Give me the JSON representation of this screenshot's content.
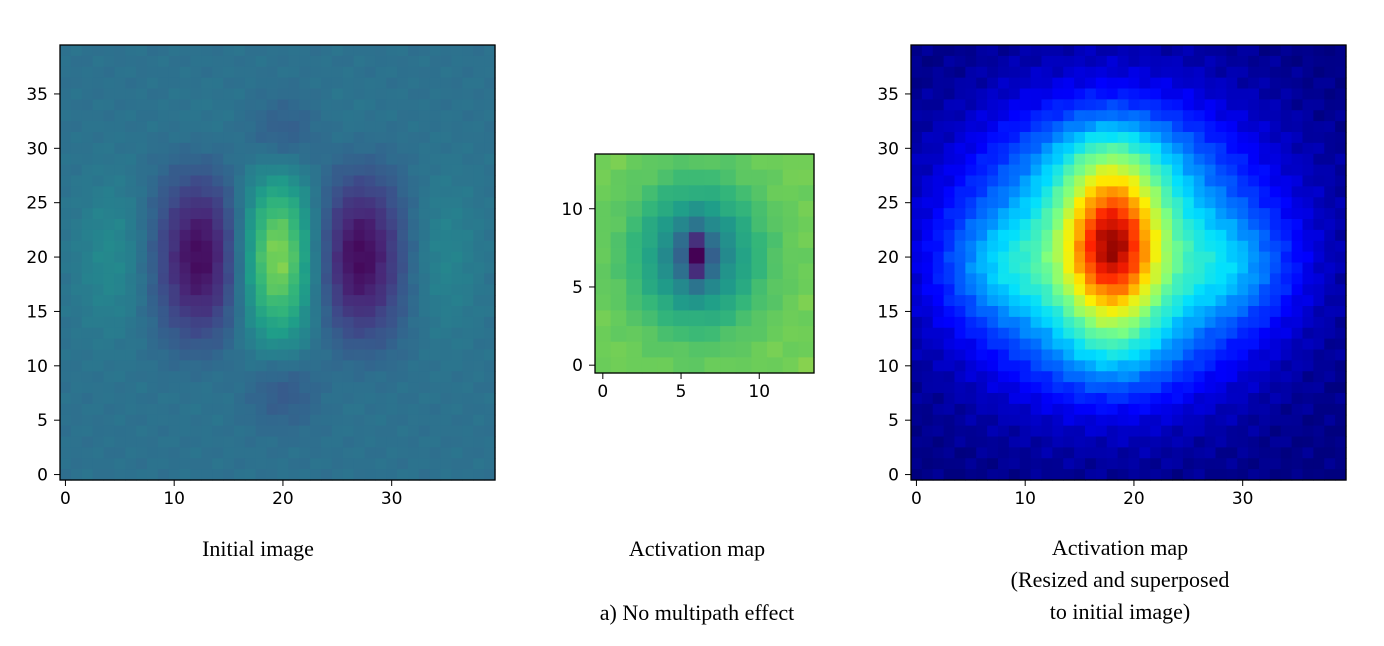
{
  "figure": {
    "caption_main": "a) No multipath effect"
  },
  "chart_data": [
    {
      "type": "heatmap",
      "title": "",
      "caption": "Initial image",
      "colormap": "viridis",
      "grid_size": [
        40,
        40
      ],
      "xlim": [
        -0.5,
        39.5
      ],
      "ylim": [
        39.5,
        -0.5
      ],
      "x_ticks": [
        0,
        10,
        20,
        30
      ],
      "y_ticks": [
        0,
        5,
        10,
        15,
        20,
        25,
        30,
        35
      ],
      "field": {
        "baseline": 0.42,
        "components": [
          {
            "cx": 12.5,
            "cy": 19,
            "sx": 3.0,
            "sy": 5.5,
            "amp": -0.4
          },
          {
            "cx": 27,
            "cy": 19,
            "sx": 3.0,
            "sy": 5.5,
            "amp": -0.4
          },
          {
            "cx": 19.5,
            "cy": 19,
            "sx": 2.6,
            "sy": 5.5,
            "amp": 0.52
          },
          {
            "cx": 4.5,
            "cy": 19,
            "sx": 2.5,
            "sy": 5,
            "amp": 0.12
          },
          {
            "cx": 34.5,
            "cy": 19,
            "sx": 2.5,
            "sy": 5,
            "amp": 0.1
          },
          {
            "cx": 20,
            "cy": 8,
            "sx": 2.5,
            "sy": 2.5,
            "amp": -0.14
          },
          {
            "cx": 20,
            "cy": 31,
            "sx": 2.5,
            "sy": 2.5,
            "amp": -0.14
          },
          {
            "cx": 13,
            "cy": 8,
            "sx": 3,
            "sy": 3,
            "amp": 0.05
          },
          {
            "cx": 26,
            "cy": 8,
            "sx": 3,
            "sy": 3,
            "amp": 0.05
          },
          {
            "cx": 13,
            "cy": 30,
            "sx": 3,
            "sy": 3,
            "amp": 0.04
          },
          {
            "cx": 26,
            "cy": 30,
            "sx": 3,
            "sy": 3,
            "amp": 0.04
          }
        ]
      }
    },
    {
      "type": "heatmap",
      "title": "",
      "caption": "Activation map",
      "colormap": "viridis",
      "grid_size": [
        14,
        14
      ],
      "xlim": [
        -0.5,
        13.5
      ],
      "ylim": [
        13.5,
        -0.5
      ],
      "x_ticks": [
        0,
        5,
        10
      ],
      "y_ticks": [
        0,
        5,
        10
      ],
      "field": {
        "baseline": 0.88,
        "components": [
          {
            "cx": 6,
            "cy": 6,
            "sx": 2.6,
            "sy": 3.0,
            "amp": -0.45
          },
          {
            "cx": 6,
            "cy": 6,
            "sx": 0.6,
            "sy": 1.1,
            "amp": -0.45
          }
        ]
      }
    },
    {
      "type": "heatmap",
      "title": "",
      "caption": "Activation map\n(Resized and superposed\nto initial image)",
      "colormap": "jet",
      "grid_size": [
        40,
        40
      ],
      "xlim": [
        -0.5,
        39.5
      ],
      "ylim": [
        39.5,
        -0.5
      ],
      "x_ticks": [
        0,
        10,
        20,
        30
      ],
      "y_ticks": [
        0,
        5,
        10,
        15,
        20,
        25,
        30,
        35
      ],
      "field": {
        "baseline": 0.0,
        "components": [
          {
            "cx": 18,
            "cy": 18,
            "sx": 9.5,
            "sy": 8.5,
            "amp": 0.42
          },
          {
            "cx": 18,
            "cy": 18,
            "sx": 3.0,
            "sy": 5.0,
            "amp": 0.55
          },
          {
            "cx": 18,
            "cy": 10,
            "sx": 5,
            "sy": 3,
            "amp": 0.1
          },
          {
            "cx": 8,
            "cy": 20,
            "sx": 4,
            "sy": 3.5,
            "amp": 0.12
          },
          {
            "cx": 29,
            "cy": 20,
            "sx": 4,
            "sy": 3.5,
            "amp": 0.12
          },
          {
            "cx": 18,
            "cy": 28,
            "sx": 5,
            "sy": 3,
            "amp": 0.08
          }
        ]
      }
    }
  ]
}
